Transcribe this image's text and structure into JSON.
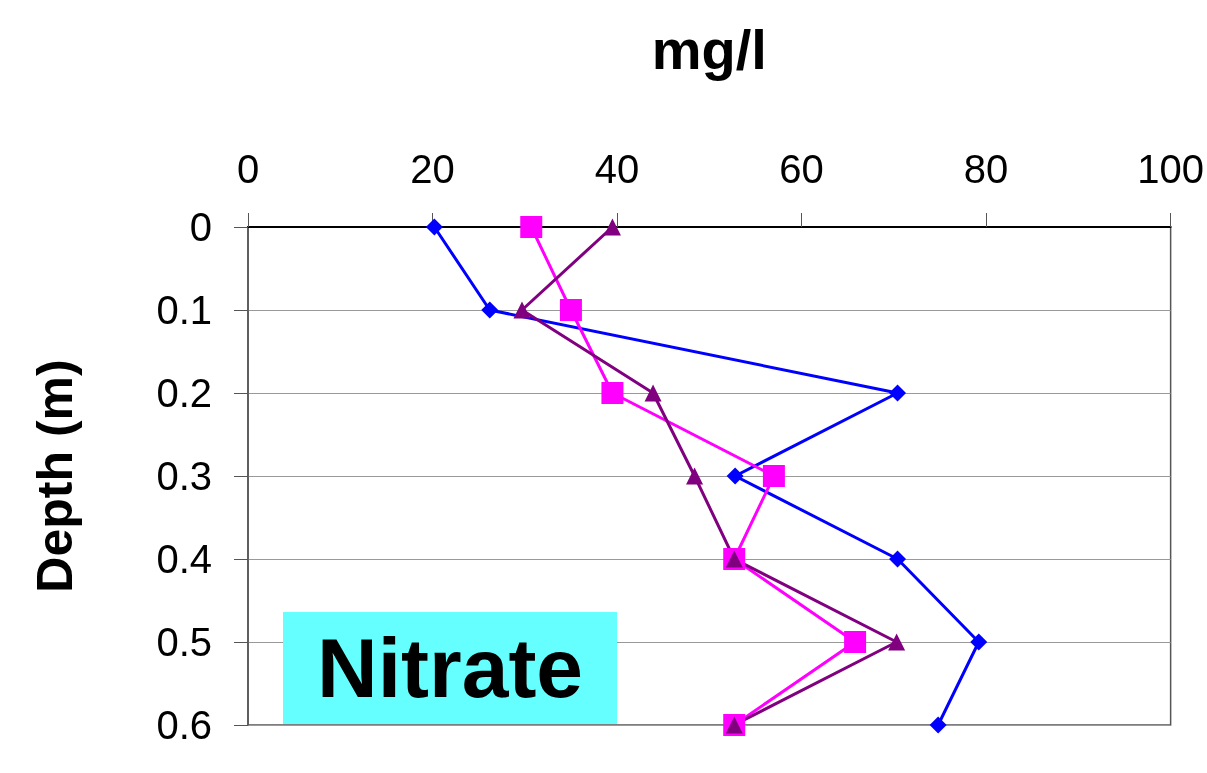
{
  "chart_data": {
    "type": "line",
    "xlabel": "mg/l",
    "ylabel": "Depth (m)",
    "xlim": [
      0,
      100
    ],
    "xticks": [
      0,
      20,
      40,
      60,
      80,
      100
    ],
    "ylim": [
      0.6,
      0
    ],
    "yticks": [
      0,
      0.1,
      0.2,
      0.3,
      0.4,
      0.5,
      0.6
    ],
    "grid": "y",
    "annotations": [
      "Nitrate"
    ],
    "series": [
      {
        "color": "#0000ff",
        "marker": "diamond",
        "x": [
          20.2,
          26.2,
          70.4,
          52.8,
          70.4,
          79.2,
          74.8
        ],
        "values": [
          0,
          0.1,
          0.2,
          0.3,
          0.4,
          0.5,
          0.6
        ]
      },
      {
        "color": "#ff00ff",
        "marker": "square",
        "x": [
          30.7,
          35.0,
          39.5,
          57.0,
          52.7,
          65.8,
          52.7
        ],
        "values": [
          0,
          0.1,
          0.2,
          0.3,
          0.4,
          0.5,
          0.6
        ]
      },
      {
        "color": "#800080",
        "marker": "triangle",
        "x": [
          39.5,
          29.7,
          43.9,
          48.4,
          52.7,
          70.3,
          52.7
        ],
        "values": [
          0,
          0.1,
          0.2,
          0.3,
          0.4,
          0.5,
          0.6
        ]
      }
    ]
  }
}
